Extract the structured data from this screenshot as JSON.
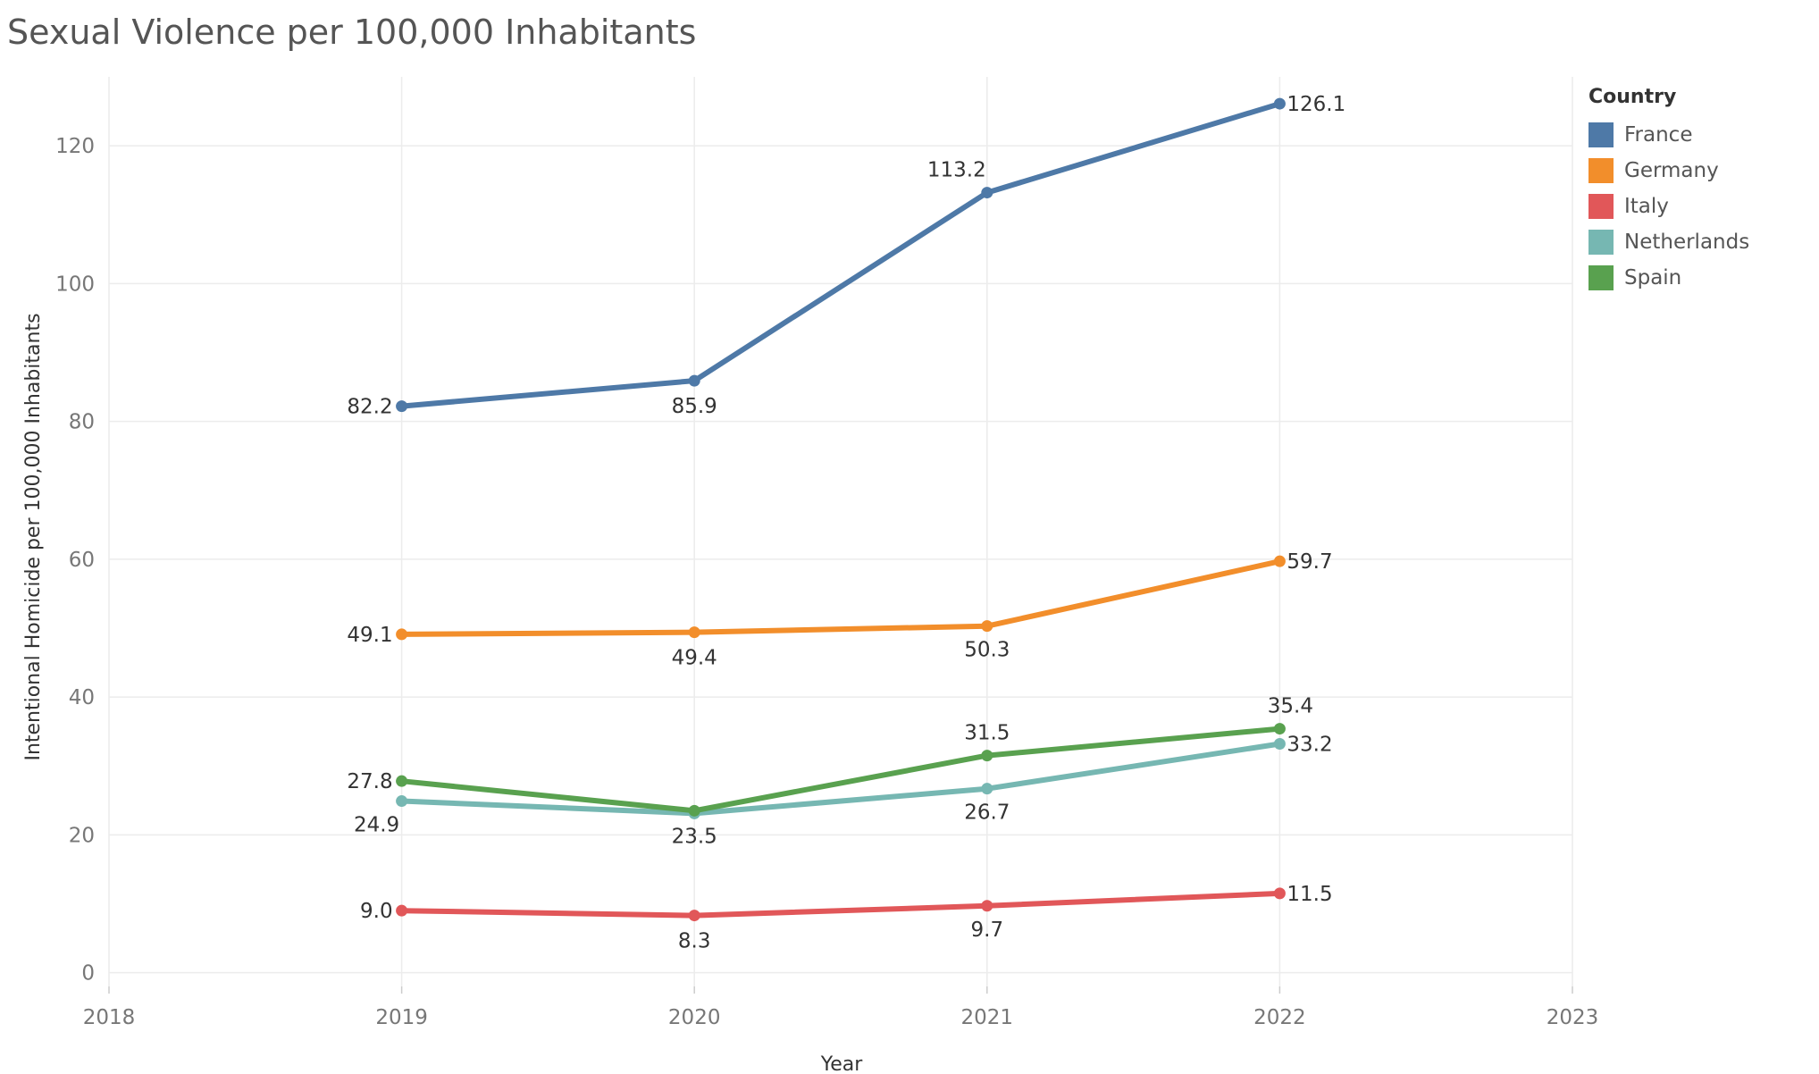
{
  "chart_data": {
    "type": "line",
    "title": "Sexual Violence per 100,000 Inhabitants",
    "xlabel": "Year",
    "ylabel": "Intentional Homicide per 100,000 Inhabitants",
    "x": [
      2019,
      2020,
      2021,
      2022
    ],
    "xlim": [
      2018,
      2023
    ],
    "xticks": [
      "2018",
      "2019",
      "2020",
      "2021",
      "2022",
      "2023"
    ],
    "ylim": [
      -2,
      130
    ],
    "yticks": [
      "0",
      "20",
      "40",
      "60",
      "80",
      "100",
      "120"
    ],
    "grid": true,
    "legend_title": "Country",
    "legend_position": "top-right",
    "series": [
      {
        "name": "France",
        "color": "#4e79a7",
        "values": [
          82.2,
          85.9,
          113.2,
          126.1
        ],
        "labels": [
          "82.2",
          "85.9",
          "113.2",
          "126.1"
        ]
      },
      {
        "name": "Germany",
        "color": "#f28e2b",
        "values": [
          49.1,
          49.4,
          50.3,
          59.7
        ],
        "labels": [
          "49.1",
          "49.4",
          "50.3",
          "59.7"
        ]
      },
      {
        "name": "Italy",
        "color": "#e15759",
        "values": [
          9.0,
          8.3,
          9.7,
          11.5
        ],
        "labels": [
          "9.0",
          "8.3",
          "9.7",
          "11.5"
        ]
      },
      {
        "name": "Netherlands",
        "color": "#76b7b2",
        "values": [
          24.9,
          23.1,
          26.7,
          33.2
        ],
        "labels": [
          "24.9",
          "",
          "26.7",
          "33.2"
        ]
      },
      {
        "name": "Spain",
        "color": "#59a14f",
        "values": [
          27.8,
          23.5,
          31.5,
          35.4
        ],
        "labels": [
          "27.8",
          "23.5",
          "31.5",
          "35.4"
        ]
      }
    ]
  }
}
